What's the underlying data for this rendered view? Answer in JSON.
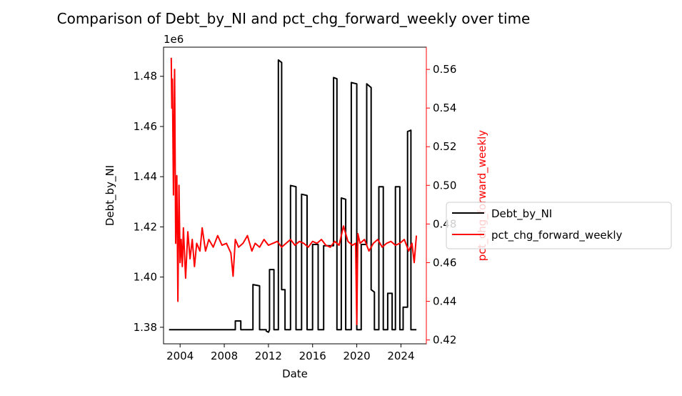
{
  "chart_data": {
    "type": "line",
    "title": "Comparison of Debt_by_NI and pct_chg_forward_weekly over time",
    "xlabel": "Date",
    "x_ticks": [
      "2004",
      "2008",
      "2012",
      "2016",
      "2020",
      "2024"
    ],
    "xlim": [
      2002.5,
      2026.3
    ],
    "y_left": {
      "label": "Debt_by_NI",
      "offset_text": "1e6",
      "ticks": [
        "1.38",
        "1.40",
        "1.42",
        "1.44",
        "1.46",
        "1.48"
      ],
      "tick_values": [
        1.38,
        1.4,
        1.42,
        1.44,
        1.46,
        1.48
      ],
      "lim": [
        1.3734,
        1.4916
      ],
      "color": "#000000"
    },
    "y_right": {
      "label": "pct_chg_forward_weekly",
      "ticks": [
        "0.42",
        "0.44",
        "0.46",
        "0.48",
        "0.50",
        "0.52",
        "0.54",
        "0.56"
      ],
      "tick_values": [
        0.42,
        0.44,
        0.46,
        0.48,
        0.5,
        0.52,
        0.54,
        0.56
      ],
      "lim": [
        0.418,
        0.5715
      ],
      "color": "#ff0000"
    },
    "legend": {
      "placement": "right-outside",
      "entries": [
        "Debt_by_NI",
        "pct_chg_forward_weekly"
      ]
    },
    "series": [
      {
        "name": "Debt_by_NI",
        "axis": "left",
        "color": "#000000",
        "x": [
          2003.0,
          2009.0,
          2009.0,
          2009.5,
          2009.5,
          2010.6,
          2010.6,
          2011.2,
          2011.2,
          2011.8,
          2011.8,
          2012.0,
          2012.1,
          2012.1,
          2012.5,
          2012.5,
          2012.9,
          2012.9,
          2013.2,
          2013.2,
          2013.5,
          2013.5,
          2014.0,
          2014.0,
          2014.5,
          2014.5,
          2015.0,
          2015.0,
          2015.5,
          2015.5,
          2016.0,
          2016.0,
          2016.5,
          2016.5,
          2017.0,
          2017.0,
          2017.9,
          2017.9,
          2018.2,
          2018.2,
          2018.6,
          2018.6,
          2019.0,
          2019.0,
          2019.5,
          2019.5,
          2020.0,
          2020.0,
          2020.4,
          2020.4,
          2020.9,
          2020.9,
          2021.3,
          2021.3,
          2021.6,
          2021.6,
          2022.0,
          2022.0,
          2022.4,
          2022.4,
          2022.8,
          2022.8,
          2023.2,
          2023.2,
          2023.5,
          2023.5,
          2023.9,
          2023.9,
          2024.2,
          2024.2,
          2024.6,
          2024.6,
          2024.9,
          2024.9,
          2025.2,
          2025.2,
          2025.4
        ],
        "y": [
          1.379,
          1.379,
          1.3825,
          1.3825,
          1.379,
          1.379,
          1.397,
          1.3965,
          1.379,
          1.379,
          1.3785,
          1.378,
          1.379,
          1.403,
          1.403,
          1.379,
          1.379,
          1.4865,
          1.4855,
          1.395,
          1.395,
          1.379,
          1.379,
          1.4365,
          1.436,
          1.379,
          1.379,
          1.433,
          1.4325,
          1.379,
          1.379,
          1.413,
          1.413,
          1.379,
          1.379,
          1.4125,
          1.4125,
          1.4795,
          1.479,
          1.379,
          1.379,
          1.4315,
          1.431,
          1.379,
          1.379,
          1.4775,
          1.477,
          1.379,
          1.379,
          1.413,
          1.413,
          1.477,
          1.4755,
          1.395,
          1.394,
          1.379,
          1.379,
          1.436,
          1.436,
          1.379,
          1.379,
          1.3935,
          1.3935,
          1.379,
          1.379,
          1.436,
          1.436,
          1.379,
          1.379,
          1.388,
          1.388,
          1.458,
          1.4585,
          1.379,
          1.379,
          1.379,
          1.379
        ]
      },
      {
        "name": "pct_chg_forward_weekly",
        "axis": "right",
        "color": "#ff0000",
        "x": [
          2003.2,
          2003.25,
          2003.3,
          2003.4,
          2003.5,
          2003.6,
          2003.7,
          2003.8,
          2003.9,
          2004.0,
          2004.1,
          2004.2,
          2004.3,
          2004.5,
          2004.7,
          2004.9,
          2005.1,
          2005.3,
          2005.5,
          2005.8,
          2006.0,
          2006.3,
          2006.6,
          2007.0,
          2007.4,
          2007.8,
          2008.2,
          2008.6,
          2008.8,
          2009.0,
          2009.3,
          2009.7,
          2010.1,
          2010.5,
          2010.8,
          2011.2,
          2011.6,
          2012.0,
          2012.4,
          2012.8,
          2013.2,
          2013.6,
          2014.0,
          2014.4,
          2014.8,
          2015.2,
          2015.6,
          2016.0,
          2016.4,
          2016.8,
          2017.2,
          2017.6,
          2018.0,
          2018.4,
          2018.8,
          2019.2,
          2019.6,
          2019.9,
          2020.0,
          2020.1,
          2020.3,
          2020.7,
          2021.1,
          2021.5,
          2021.9,
          2022.3,
          2022.7,
          2023.1,
          2023.5,
          2023.9,
          2024.3,
          2024.7,
          2025.0,
          2025.2,
          2025.4
        ],
        "y": [
          0.566,
          0.54,
          0.555,
          0.495,
          0.56,
          0.47,
          0.505,
          0.44,
          0.5,
          0.46,
          0.472,
          0.458,
          0.478,
          0.452,
          0.476,
          0.462,
          0.472,
          0.458,
          0.47,
          0.466,
          0.478,
          0.466,
          0.472,
          0.468,
          0.474,
          0.469,
          0.47,
          0.465,
          0.453,
          0.472,
          0.468,
          0.47,
          0.474,
          0.466,
          0.47,
          0.468,
          0.472,
          0.469,
          0.47,
          0.471,
          0.468,
          0.47,
          0.472,
          0.469,
          0.471,
          0.47,
          0.468,
          0.471,
          0.47,
          0.472,
          0.469,
          0.468,
          0.471,
          0.469,
          0.479,
          0.471,
          0.469,
          0.47,
          0.428,
          0.475,
          0.47,
          0.472,
          0.466,
          0.47,
          0.472,
          0.468,
          0.47,
          0.471,
          0.469,
          0.47,
          0.472,
          0.466,
          0.47,
          0.46,
          0.474
        ]
      }
    ]
  }
}
